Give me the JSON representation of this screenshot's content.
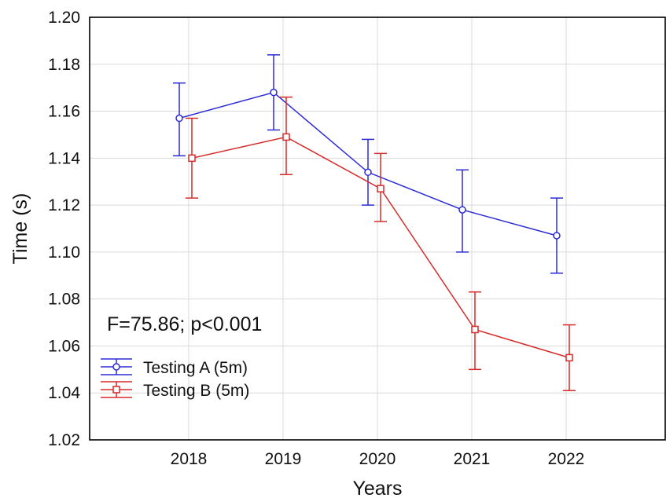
{
  "chart_data": {
    "type": "line",
    "xlabel": "Years",
    "ylabel": "Time (s)",
    "categories": [
      "2018",
      "2019",
      "2020",
      "2021",
      "2022"
    ],
    "ylim": [
      1.02,
      1.2
    ],
    "yticks": [
      "1.02",
      "1.04",
      "1.06",
      "1.08",
      "1.10",
      "1.12",
      "1.14",
      "1.16",
      "1.18",
      "1.20"
    ],
    "grid": true,
    "annotation": "F=75.86; p<0.001",
    "legend_position": "bottom-left",
    "series": [
      {
        "name": "Testing A (5m)",
        "color": "#2b2bd6",
        "marker": "circle",
        "values": [
          1.157,
          1.168,
          1.134,
          1.118,
          1.107
        ],
        "err_low": [
          1.141,
          1.152,
          1.12,
          1.1,
          1.091
        ],
        "err_high": [
          1.172,
          1.184,
          1.148,
          1.135,
          1.123
        ]
      },
      {
        "name": "Testing B (5m)",
        "color": "#d62b2b",
        "marker": "square",
        "values": [
          1.14,
          1.149,
          1.127,
          1.067,
          1.055
        ],
        "err_low": [
          1.123,
          1.133,
          1.113,
          1.05,
          1.041
        ],
        "err_high": [
          1.157,
          1.166,
          1.142,
          1.083,
          1.069
        ]
      }
    ]
  }
}
